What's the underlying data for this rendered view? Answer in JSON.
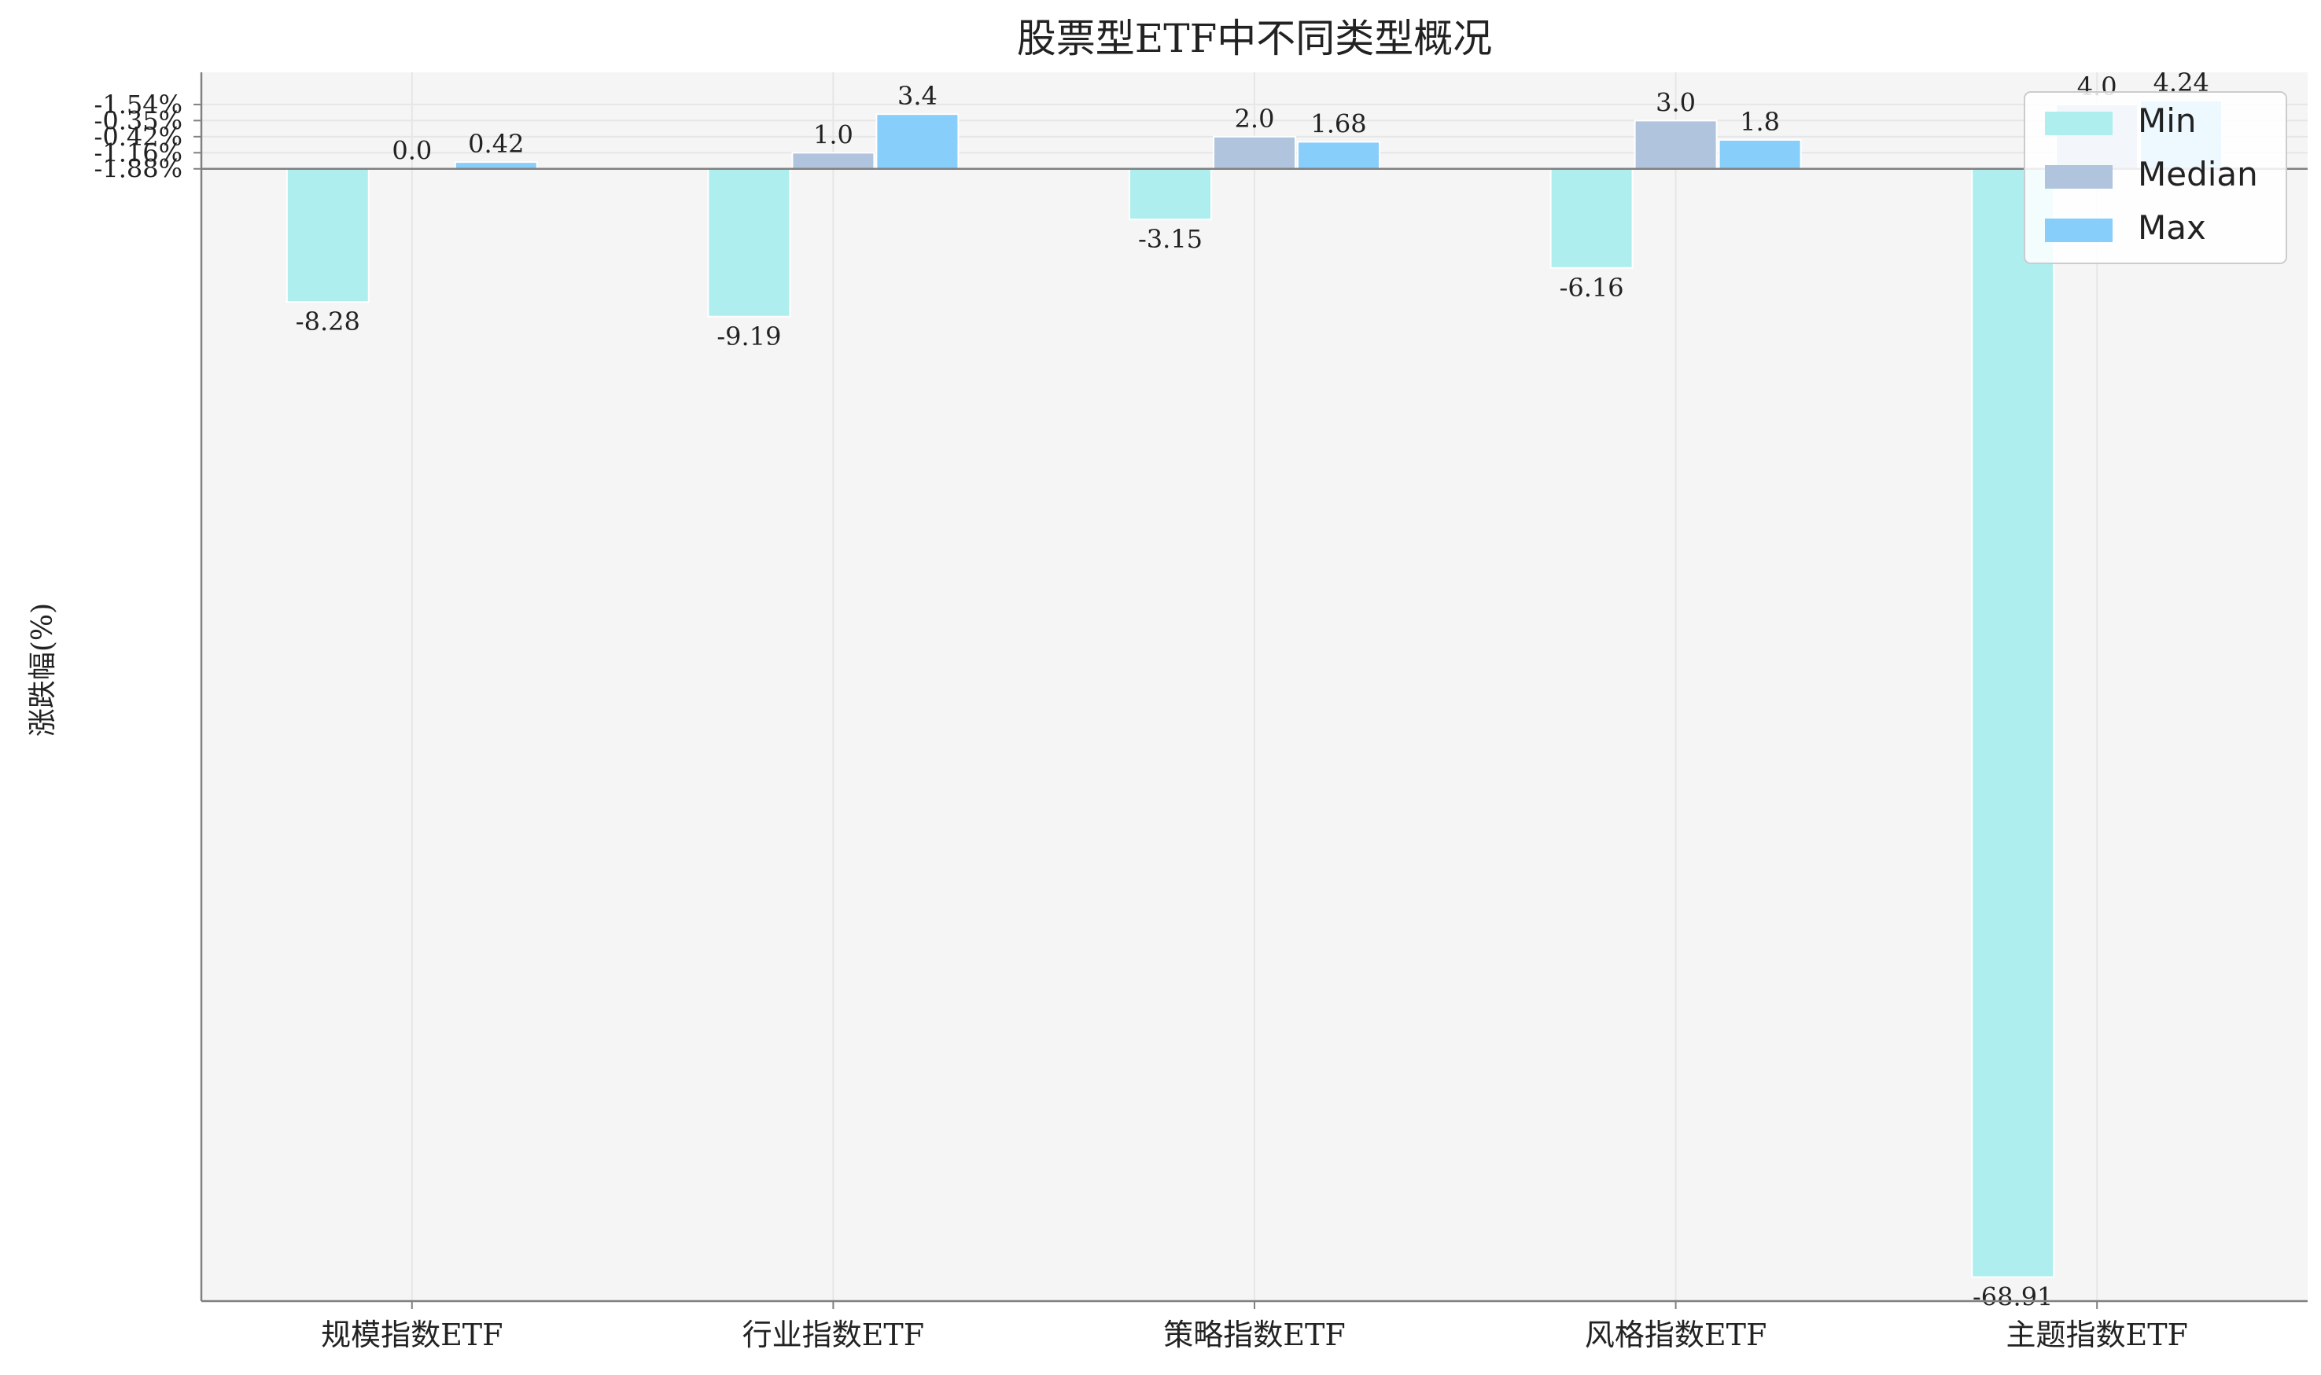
{
  "chart_data": {
    "type": "bar",
    "title": "股票型ETF中不同类型概况",
    "xlabel": "",
    "ylabel": "涨跌幅(%)",
    "categories": [
      "规模指数ETF",
      "行业指数ETF",
      "策略指数ETF",
      "风格指数ETF",
      "主题指数ETF"
    ],
    "series": [
      {
        "name": "Min",
        "color": "#afeeee",
        "values": [
          -8.28,
          -9.19,
          -3.15,
          -6.16,
          -68.91
        ]
      },
      {
        "name": "Median",
        "color": "#b0c4de",
        "values": [
          0.0,
          1.0,
          2.0,
          3.0,
          4.0
        ]
      },
      {
        "name": "Max",
        "color": "#87cefa",
        "values": [
          0.42,
          3.4,
          1.68,
          1.8,
          4.24
        ]
      }
    ],
    "value_labels": [
      [
        "-8.28",
        "-9.19",
        "-3.15",
        "-6.16",
        "-68.91"
      ],
      [
        "0.0",
        "1.0",
        "2.0",
        "3.0",
        "4.0"
      ],
      [
        "0.42",
        "3.4",
        "1.68",
        "1.8",
        "4.24"
      ]
    ],
    "yticks": [
      {
        "value": 0,
        "label": "-1.88%"
      },
      {
        "value": 1,
        "label": "-1.16%"
      },
      {
        "value": 2,
        "label": "-0.42%"
      },
      {
        "value": 3,
        "label": "-0.35%"
      },
      {
        "value": 4,
        "label": "-1.54%"
      }
    ],
    "ylim": [
      -70.4,
      6.0
    ],
    "grid": true,
    "legend_position": "top-right",
    "colors": {
      "plot_background": "#f5f5f5",
      "grid": "#e6e6e6",
      "axis": "#808080",
      "text": "#222222"
    }
  }
}
